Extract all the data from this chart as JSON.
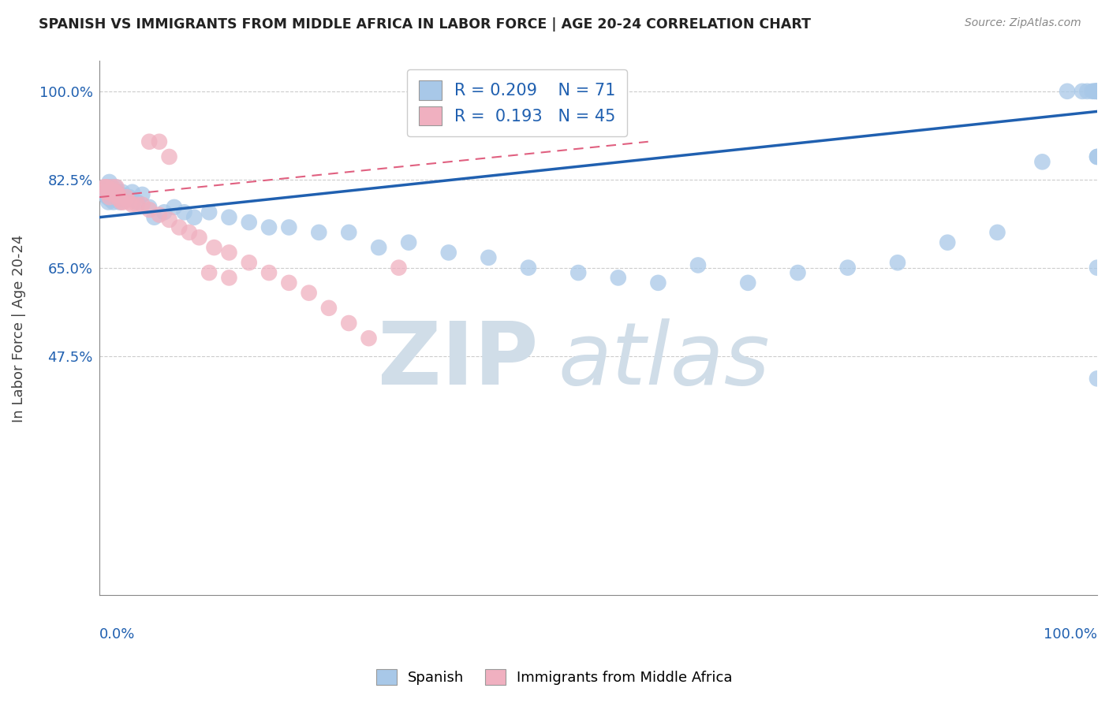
{
  "title": "SPANISH VS IMMIGRANTS FROM MIDDLE AFRICA IN LABOR FORCE | AGE 20-24 CORRELATION CHART",
  "source": "Source: ZipAtlas.com",
  "ylabel": "In Labor Force | Age 20-24",
  "blue_R": "0.209",
  "blue_N": "71",
  "pink_R": "0.193",
  "pink_N": "45",
  "blue_color": "#a8c8e8",
  "pink_color": "#f0b0c0",
  "blue_line_color": "#2060b0",
  "pink_line_color": "#e06080",
  "text_color": "#2060b0",
  "grid_color": "#cccccc",
  "watermark_color": "#d0dde8",
  "xlim": [
    0.0,
    1.0
  ],
  "ylim": [
    0.0,
    1.06
  ],
  "ytick_positions": [
    0.475,
    0.65,
    0.825,
    1.0
  ],
  "ytick_labels": [
    "47.5%",
    "65.0%",
    "82.5%",
    "100.0%"
  ],
  "blue_x": [
    0.005,
    0.007,
    0.008,
    0.009,
    0.01,
    0.01,
    0.01,
    0.011,
    0.012,
    0.013,
    0.014,
    0.015,
    0.015,
    0.016,
    0.017,
    0.018,
    0.019,
    0.02,
    0.021,
    0.022,
    0.023,
    0.025,
    0.027,
    0.03,
    0.033,
    0.038,
    0.043,
    0.05,
    0.055,
    0.065,
    0.075,
    0.085,
    0.095,
    0.11,
    0.13,
    0.15,
    0.17,
    0.19,
    0.22,
    0.25,
    0.28,
    0.31,
    0.35,
    0.39,
    0.43,
    0.48,
    0.52,
    0.56,
    0.6,
    0.65,
    0.7,
    0.75,
    0.8,
    0.85,
    0.9,
    0.945,
    0.97,
    0.985,
    0.99,
    0.995,
    0.997,
    0.998,
    0.999,
    1.0,
    1.0,
    1.0,
    1.0,
    1.0,
    1.0,
    1.0,
    1.0
  ],
  "blue_y": [
    0.795,
    0.8,
    0.79,
    0.78,
    0.8,
    0.81,
    0.82,
    0.785,
    0.81,
    0.795,
    0.78,
    0.79,
    0.8,
    0.81,
    0.8,
    0.79,
    0.785,
    0.78,
    0.79,
    0.795,
    0.8,
    0.79,
    0.785,
    0.79,
    0.8,
    0.78,
    0.795,
    0.77,
    0.75,
    0.76,
    0.77,
    0.76,
    0.75,
    0.76,
    0.75,
    0.74,
    0.73,
    0.73,
    0.72,
    0.72,
    0.69,
    0.7,
    0.68,
    0.67,
    0.65,
    0.64,
    0.63,
    0.62,
    0.655,
    0.62,
    0.64,
    0.65,
    0.66,
    0.7,
    0.72,
    0.86,
    1.0,
    1.0,
    1.0,
    1.0,
    1.0,
    1.0,
    1.0,
    1.0,
    1.0,
    1.0,
    1.0,
    0.87,
    0.87,
    0.43,
    0.65
  ],
  "pink_x": [
    0.005,
    0.006,
    0.007,
    0.008,
    0.009,
    0.01,
    0.01,
    0.011,
    0.012,
    0.013,
    0.014,
    0.015,
    0.016,
    0.017,
    0.018,
    0.019,
    0.02,
    0.022,
    0.024,
    0.027,
    0.03,
    0.033,
    0.038,
    0.043,
    0.05,
    0.06,
    0.07,
    0.08,
    0.09,
    0.1,
    0.115,
    0.13,
    0.15,
    0.17,
    0.19,
    0.21,
    0.23,
    0.25,
    0.27,
    0.05,
    0.06,
    0.07,
    0.11,
    0.13,
    0.3
  ],
  "pink_y": [
    0.81,
    0.81,
    0.8,
    0.81,
    0.8,
    0.8,
    0.79,
    0.805,
    0.8,
    0.81,
    0.795,
    0.8,
    0.8,
    0.81,
    0.795,
    0.795,
    0.785,
    0.78,
    0.78,
    0.79,
    0.78,
    0.775,
    0.775,
    0.775,
    0.765,
    0.755,
    0.745,
    0.73,
    0.72,
    0.71,
    0.69,
    0.68,
    0.66,
    0.64,
    0.62,
    0.6,
    0.57,
    0.54,
    0.51,
    0.9,
    0.9,
    0.87,
    0.64,
    0.63,
    0.65
  ],
  "blue_line_x0": 0.0,
  "blue_line_y0": 0.75,
  "blue_line_x1": 1.0,
  "blue_line_y1": 0.96,
  "pink_line_x0": 0.0,
  "pink_line_y0": 0.79,
  "pink_line_x1": 0.55,
  "pink_line_y1": 0.9
}
